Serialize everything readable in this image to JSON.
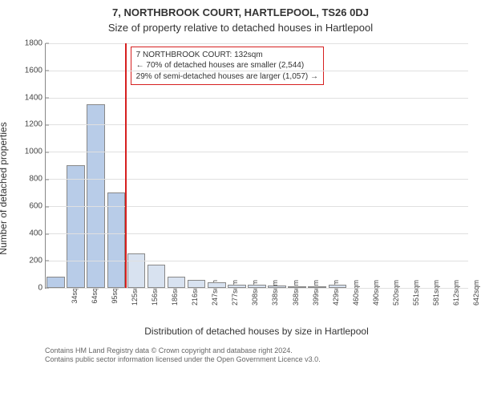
{
  "title_main": "7, NORTHBROOK COURT, HARTLEPOOL, TS26 0DJ",
  "title_sub": "Size of property relative to detached houses in Hartlepool",
  "y_label": "Number of detached properties",
  "x_label": "Distribution of detached houses by size in Hartlepool",
  "chart": {
    "type": "histogram",
    "ylim": [
      0,
      1800
    ],
    "ytick_step": 200,
    "yticks": [
      "0",
      "200",
      "400",
      "600",
      "800",
      "1000",
      "1200",
      "1400",
      "1600",
      "1800"
    ],
    "bar_fill": "#d8e2f0",
    "bar_fill_highlight": "#b8cce8",
    "bar_border": "#888888",
    "grid_color": "#e0e0e0",
    "marker_color": "#d62020",
    "background_color": "#ffffff",
    "marker_after_index": 3,
    "categories": [
      "34sqm",
      "64sqm",
      "95sqm",
      "125sqm",
      "156sqm",
      "186sqm",
      "216sqm",
      "247sqm",
      "277sqm",
      "308sqm",
      "338sqm",
      "368sqm",
      "399sqm",
      "429sqm",
      "460sqm",
      "490sqm",
      "520sqm",
      "551sqm",
      "581sqm",
      "612sqm",
      "642sqm"
    ],
    "values": [
      80,
      900,
      1350,
      700,
      250,
      170,
      80,
      60,
      40,
      25,
      20,
      15,
      10,
      5,
      20,
      0,
      0,
      0,
      0,
      0,
      0
    ]
  },
  "annotation": {
    "line1": "7 NORTHBROOK COURT: 132sqm",
    "line2": "← 70% of detached houses are smaller (2,544)",
    "line3": "29% of semi-detached houses are larger (1,057) →"
  },
  "credit": {
    "line1": "Contains HM Land Registry data © Crown copyright and database right 2024.",
    "line2": "Contains public sector information licensed under the Open Government Licence v3.0."
  }
}
